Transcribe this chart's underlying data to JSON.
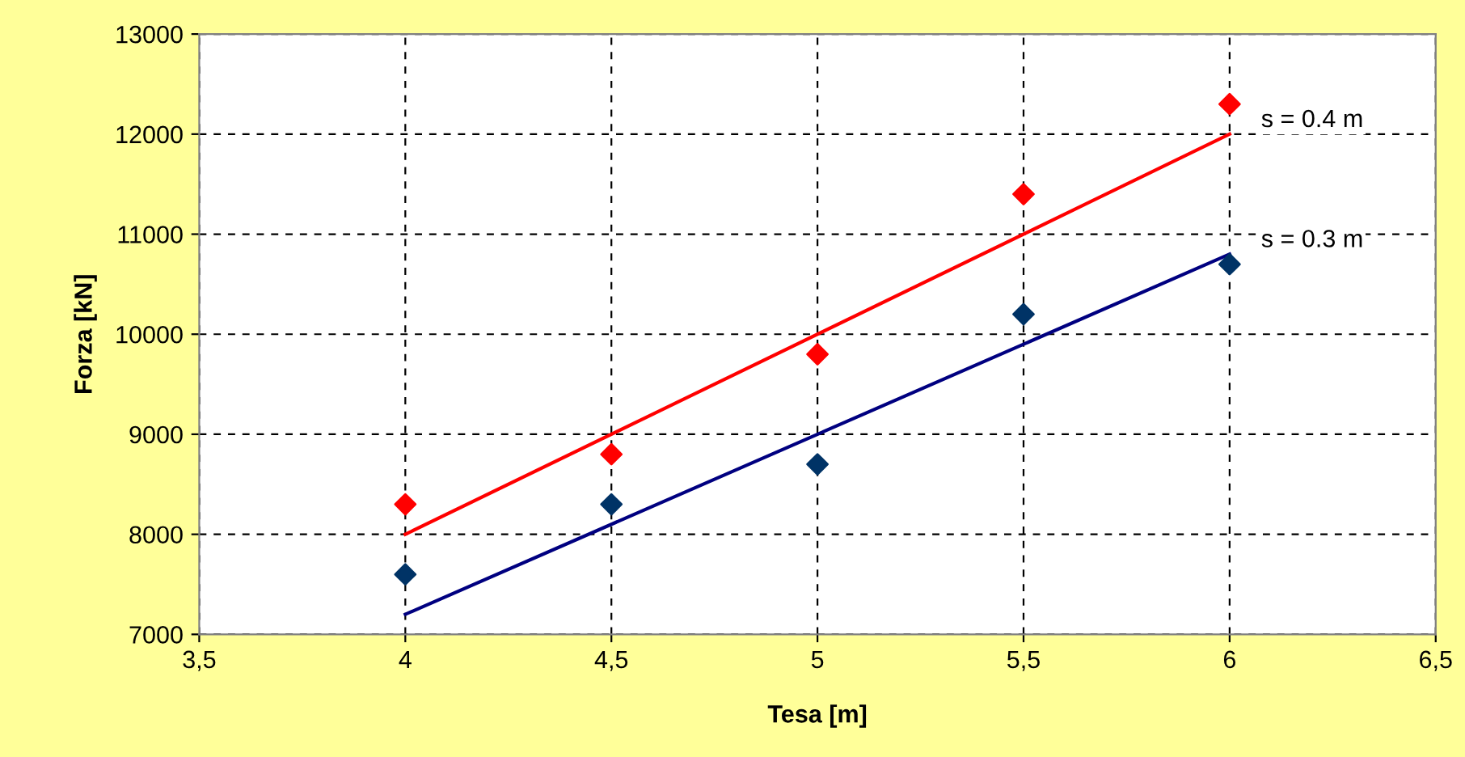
{
  "chart_data": {
    "type": "scatter",
    "xlabel": "Tesa [m]",
    "ylabel": "Forza [kN]",
    "xlim": [
      3.5,
      6.5
    ],
    "xticks": [
      {
        "value": 3.5,
        "label": "3,5"
      },
      4,
      {
        "value": 4.5,
        "label": "4,5"
      },
      5,
      {
        "value": 5.5,
        "label": "5,5"
      },
      6,
      {
        "value": 6.5,
        "label": "6,5"
      }
    ],
    "ylim": [
      7000,
      13000
    ],
    "yticks": [
      7000,
      8000,
      9000,
      10000,
      11000,
      12000,
      13000
    ],
    "grid": true,
    "series": [
      {
        "color": "#ff0000",
        "marker": "diamond",
        "x": [
          4,
          4.5,
          5,
          5.5,
          6
        ],
        "values": [
          8300,
          8800,
          9800,
          11400,
          12300
        ]
      },
      {
        "color": "#003366",
        "marker": "diamond",
        "x": [
          4,
          4.5,
          5,
          5.5,
          6
        ],
        "values": [
          7600,
          8300,
          8700,
          10200,
          10700
        ]
      },
      {
        "type": "line",
        "name": "s = 0.4 m",
        "color": "#ff0000",
        "x": [
          4,
          6
        ],
        "values": [
          8000,
          12000
        ]
      },
      {
        "type": "line",
        "name": "s = 0.3 m",
        "color": "#000080",
        "x": [
          4,
          6
        ],
        "values": [
          7200,
          10800
        ]
      }
    ]
  }
}
